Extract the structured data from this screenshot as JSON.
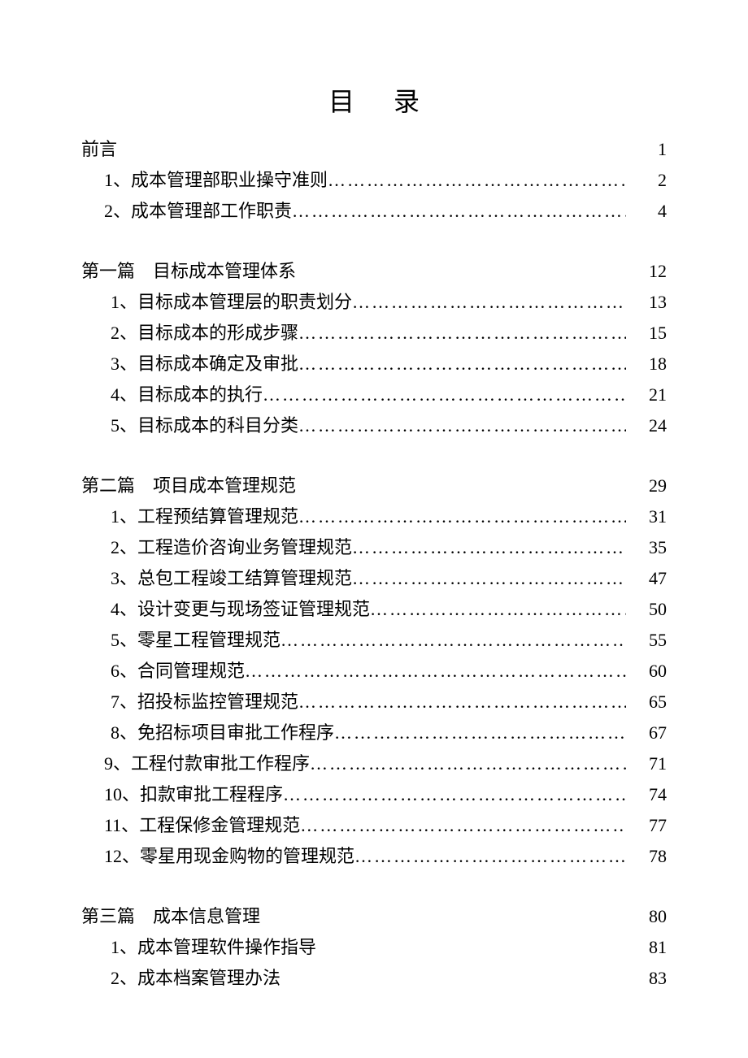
{
  "title": "目录",
  "sections": [
    {
      "head": "前言",
      "page": "1",
      "entries": [
        {
          "num": "1、",
          "label": "成本管理部职业操守准则 ",
          "page": "2",
          "dots": true
        },
        {
          "num": "2、",
          "label": "成本管理部工作职责 ",
          "page": "4",
          "dots": true
        }
      ]
    },
    {
      "head": "第一篇　目标成本管理体系",
      "page": "12",
      "entries": [
        {
          "num": "1、",
          "label": "目标成本管理层的职责划分",
          "page": "13",
          "dots": true,
          "indent": true
        },
        {
          "num": "2、",
          "label": "目标成本的形成步骤",
          "page": "15",
          "dots": true,
          "indent": true
        },
        {
          "num": "3、",
          "label": "目标成本确定及审批",
          "page": "18",
          "dots": true,
          "indent": true
        },
        {
          "num": "4、",
          "label": "目标成本的执行",
          "page": "21",
          "dots": true,
          "indent": true
        },
        {
          "num": "5、",
          "label": "目标成本的科目分类",
          "page": "24",
          "dots": true,
          "indent": true
        }
      ]
    },
    {
      "head": "第二篇　项目成本管理规范",
      "page": "29",
      "entries": [
        {
          "num": "1、",
          "label": "工程预结算管理规范",
          "page": "31",
          "dots": true,
          "indent": true
        },
        {
          "num": "2、",
          "label": "工程造价咨询业务管理规范",
          "page": "35",
          "dots": true,
          "indent": true
        },
        {
          "num": "3、",
          "label": "总包工程竣工结算管理规范",
          "page": "47",
          "dots": true,
          "indent": true
        },
        {
          "num": "4、",
          "label": "设计变更与现场签证管理规范",
          "page": "50",
          "dots": true,
          "indent": true
        },
        {
          "num": "5、",
          "label": "零星工程管理规范",
          "page": "55",
          "dots": true,
          "indent": true
        },
        {
          "num": "6、",
          "label": "合同管理规范",
          "page": "60",
          "dots": true,
          "indent": true
        },
        {
          "num": "7、",
          "label": "招投标监控管理规范",
          "page": "65",
          "dots": true,
          "indent": true
        },
        {
          "num": "8、",
          "label": "免招标项目审批工作程序",
          "page": "67",
          "dots": true,
          "indent": true
        },
        {
          "num": "9、",
          "label": "工程付款审批工作程序",
          "page": "71",
          "dots": true
        },
        {
          "num": "10、",
          "label": "扣款审批工程程序",
          "page": "74",
          "dots": true
        },
        {
          "num": "11、",
          "label": "工程保修金管理规范",
          "page": "77",
          "dots": true
        },
        {
          "num": "12、",
          "label": "零星用现金购物的管理规范",
          "page": "78",
          "dots": true
        }
      ]
    },
    {
      "head": "第三篇　成本信息管理",
      "page": "80",
      "entries": [
        {
          "num": "1、",
          "label": "成本管理软件操作指导",
          "page": "81",
          "dots": false,
          "indent": true
        },
        {
          "num": "2、",
          "label": "成本档案管理办法",
          "page": "83",
          "dots": false,
          "indent": true
        }
      ]
    }
  ]
}
